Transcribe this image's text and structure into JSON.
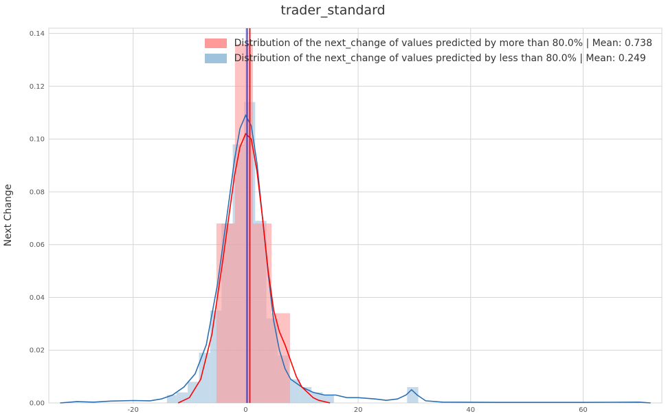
{
  "chart_data": {
    "type": "histogram",
    "title": "trader_standard",
    "ylabel": "Next Change",
    "xlim": [
      -35,
      74
    ],
    "ylim": [
      0,
      0.142
    ],
    "x_ticks": [
      -20,
      0,
      20,
      40,
      60
    ],
    "x_tick_labels": [
      "-20",
      "0",
      "20",
      "40",
      "60"
    ],
    "y_ticks": [
      0.0,
      0.02,
      0.04,
      0.06,
      0.08,
      0.1,
      0.12,
      0.14
    ],
    "y_tick_labels": [
      "0.00",
      "0.02",
      "0.04",
      "0.06",
      "0.08",
      "0.10",
      "0.12",
      "0.14"
    ],
    "grid": true,
    "legend_position": "top-right",
    "series": [
      {
        "name": "Distribution of the next_change of values predicted by more than 80.0% | Mean: 0.738",
        "color": "#ff0000",
        "fill_color": "#ff9a9a",
        "mean": 0.738,
        "bins": [
          {
            "x0": -5.2,
            "x1": -1.9,
            "value": 0.068
          },
          {
            "x0": -1.9,
            "x1": 1.3,
            "value": 0.136
          },
          {
            "x0": 1.3,
            "x1": 4.6,
            "value": 0.068
          },
          {
            "x0": 4.6,
            "x1": 7.9,
            "value": 0.034
          },
          {
            "x0": 7.9,
            "x1": 11.1,
            "value": 0.0
          }
        ],
        "kde": [
          [
            -12,
            0.0
          ],
          [
            -10,
            0.002
          ],
          [
            -8,
            0.009
          ],
          [
            -6,
            0.026
          ],
          [
            -4,
            0.055
          ],
          [
            -2,
            0.086
          ],
          [
            -1,
            0.097
          ],
          [
            0,
            0.102
          ],
          [
            1,
            0.1
          ],
          [
            2,
            0.088
          ],
          [
            3,
            0.07
          ],
          [
            4,
            0.05
          ],
          [
            5,
            0.035
          ],
          [
            6,
            0.027
          ],
          [
            7,
            0.022
          ],
          [
            8,
            0.016
          ],
          [
            9,
            0.01
          ],
          [
            10,
            0.006
          ],
          [
            11,
            0.004
          ],
          [
            12,
            0.002
          ],
          [
            13,
            0.001
          ],
          [
            15,
            0.0
          ]
        ]
      },
      {
        "name": "Distribution of the next_change of values predicted by less than 80.0% | Mean: 0.249",
        "color": "#2c6fb0",
        "fill_color": "#9fc3dd",
        "mean": 0.249,
        "bins": [
          {
            "x0": -14.0,
            "x1": -12.3,
            "value": 0.003
          },
          {
            "x0": -12.3,
            "x1": -10.3,
            "value": 0.004
          },
          {
            "x0": -10.3,
            "x1": -8.3,
            "value": 0.008
          },
          {
            "x0": -8.3,
            "x1": -6.3,
            "value": 0.019
          },
          {
            "x0": -6.3,
            "x1": -4.3,
            "value": 0.035
          },
          {
            "x0": -4.3,
            "x1": -2.3,
            "value": 0.068
          },
          {
            "x0": -2.3,
            "x1": -0.3,
            "value": 0.098
          },
          {
            "x0": -0.3,
            "x1": 1.7,
            "value": 0.114
          },
          {
            "x0": 1.7,
            "x1": 3.7,
            "value": 0.069
          },
          {
            "x0": 3.7,
            "x1": 5.7,
            "value": 0.032
          },
          {
            "x0": 5.7,
            "x1": 7.7,
            "value": 0.018
          },
          {
            "x0": 7.7,
            "x1": 9.7,
            "value": 0.009
          },
          {
            "x0": 9.7,
            "x1": 11.7,
            "value": 0.006
          },
          {
            "x0": 11.7,
            "x1": 13.7,
            "value": 0.004
          },
          {
            "x0": 13.7,
            "x1": 15.7,
            "value": 0.003
          },
          {
            "x0": 28.7,
            "x1": 30.7,
            "value": 0.006
          }
        ],
        "kde": [
          [
            -33,
            0.0
          ],
          [
            -30,
            0.0005
          ],
          [
            -27,
            0.0003
          ],
          [
            -24,
            0.0007
          ],
          [
            -20,
            0.0009
          ],
          [
            -17,
            0.0008
          ],
          [
            -15,
            0.0015
          ],
          [
            -13,
            0.003
          ],
          [
            -11,
            0.006
          ],
          [
            -9,
            0.011
          ],
          [
            -7,
            0.022
          ],
          [
            -5,
            0.045
          ],
          [
            -3,
            0.076
          ],
          [
            -2,
            0.092
          ],
          [
            -1,
            0.104
          ],
          [
            0,
            0.109
          ],
          [
            1,
            0.105
          ],
          [
            2,
            0.091
          ],
          [
            3,
            0.07
          ],
          [
            4,
            0.049
          ],
          [
            5,
            0.031
          ],
          [
            6,
            0.02
          ],
          [
            7,
            0.013
          ],
          [
            8,
            0.009
          ],
          [
            10,
            0.006
          ],
          [
            12,
            0.004
          ],
          [
            14,
            0.003
          ],
          [
            16,
            0.003
          ],
          [
            18,
            0.002
          ],
          [
            20,
            0.002
          ],
          [
            23,
            0.0015
          ],
          [
            25,
            0.001
          ],
          [
            27,
            0.0015
          ],
          [
            28.5,
            0.003
          ],
          [
            29.5,
            0.005
          ],
          [
            30.5,
            0.003
          ],
          [
            32,
            0.0008
          ],
          [
            35,
            0.0003
          ],
          [
            45,
            0.0002
          ],
          [
            60,
            0.0002
          ],
          [
            70,
            0.0003
          ],
          [
            72,
            0.0
          ]
        ]
      }
    ]
  }
}
